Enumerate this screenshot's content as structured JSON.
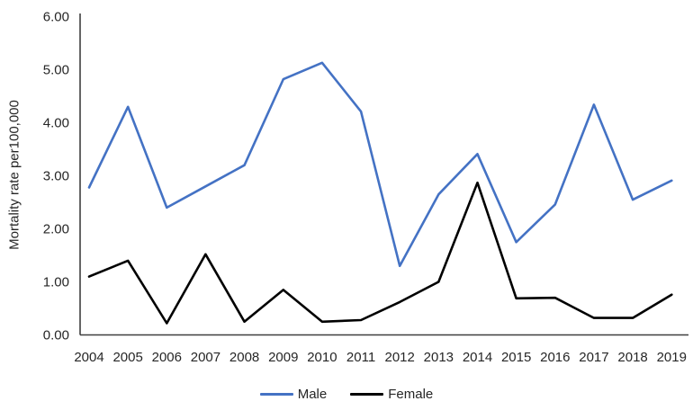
{
  "chart_data": {
    "type": "line",
    "title": "",
    "xlabel": "",
    "ylabel": "Mortality rate per100,000",
    "categories": [
      "2004",
      "2005",
      "2006",
      "2007",
      "2008",
      "2009",
      "2010",
      "2011",
      "2012",
      "2013",
      "2014",
      "2015",
      "2016",
      "2017",
      "2018",
      "2019"
    ],
    "series": [
      {
        "name": "Male",
        "color": "#4472C4",
        "values": [
          2.78,
          4.3,
          2.4,
          2.8,
          3.2,
          4.82,
          5.13,
          4.21,
          1.3,
          2.65,
          3.41,
          1.75,
          2.46,
          4.34,
          2.55,
          2.91
        ]
      },
      {
        "name": "Female",
        "color": "#000000",
        "values": [
          1.1,
          1.4,
          0.22,
          1.52,
          0.25,
          0.85,
          0.25,
          0.28,
          0.62,
          1.0,
          2.87,
          0.69,
          0.7,
          0.32,
          0.32,
          0.76
        ]
      }
    ],
    "ylim": [
      0,
      6
    ],
    "ytick_step": 1,
    "ytick_labels": [
      "0.00",
      "1.00",
      "2.00",
      "3.00",
      "4.00",
      "5.00",
      "6.00"
    ],
    "grid": false,
    "legend_position": "bottom"
  },
  "style": {
    "axis_color": "#3f3f3f",
    "text_color": "#262626",
    "background": "#ffffff"
  }
}
